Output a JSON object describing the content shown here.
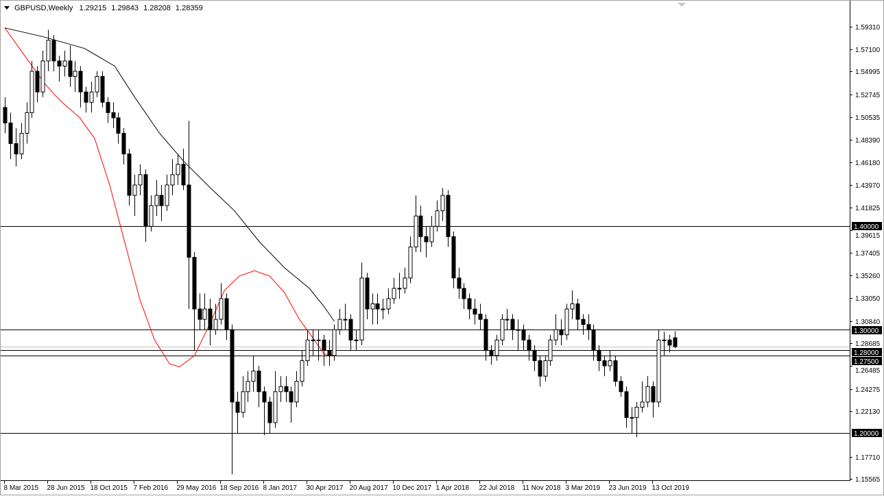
{
  "header": {
    "symbol": "GBPUSD,Weekly",
    "open": "1.29215",
    "high": "1.29843",
    "low": "1.28208",
    "close": "1.28359"
  },
  "colors": {
    "background": "#ffffff",
    "candle_up": "#ffffff",
    "candle_down": "#000000",
    "fast_ma": "#ff0000",
    "slow_ma": "#000000",
    "level_line": "#000000",
    "bid_line": "#c0c0c0"
  },
  "chart_data": {
    "type": "candlestick",
    "symbol": "GBPUSD",
    "timeframe": "Weekly",
    "ylim": [
      1.15565,
      1.5931
    ],
    "y_ticks": [
      "1.59310",
      "1.57100",
      "1.54995",
      "1.52745",
      "1.50535",
      "1.48390",
      "1.46180",
      "1.43970",
      "1.41825",
      "1.39615",
      "1.37405",
      "1.35260",
      "1.33050",
      "1.30840",
      "1.28685",
      "1.26485",
      "1.24275",
      "1.22130",
      "1.17710",
      "1.15565"
    ],
    "x_ticks": [
      "8 Mar 2015",
      "28 Jun 2015",
      "18 Oct 2015",
      "7 Feb 2016",
      "29 May 2016",
      "18 Sep 2016",
      "8 Jan 2017",
      "30 Apr 2017",
      "20 Aug 2017",
      "10 Dec 2017",
      "1 Apr 2018",
      "22 Jul 2018",
      "11 Nov 2018",
      "3 Mar 2019",
      "23 Jun 2019",
      "13 Oct 2019"
    ],
    "candle_interval_weeks": 2,
    "ohlc": [
      [
        1.515,
        1.525,
        1.49,
        1.5
      ],
      [
        1.5,
        1.51,
        1.465,
        1.48
      ],
      [
        1.48,
        1.495,
        1.458,
        1.47
      ],
      [
        1.47,
        1.5,
        1.465,
        1.49
      ],
      [
        1.49,
        1.52,
        1.48,
        1.51
      ],
      [
        1.51,
        1.56,
        1.505,
        1.55
      ],
      [
        1.55,
        1.555,
        1.52,
        1.53
      ],
      [
        1.53,
        1.57,
        1.525,
        1.56
      ],
      [
        1.56,
        1.59,
        1.55,
        1.58
      ],
      [
        1.58,
        1.585,
        1.55,
        1.56
      ],
      [
        1.56,
        1.565,
        1.54,
        1.555
      ],
      [
        1.555,
        1.57,
        1.545,
        1.56
      ],
      [
        1.56,
        1.575,
        1.535,
        1.545
      ],
      [
        1.545,
        1.56,
        1.53,
        1.55
      ],
      [
        1.55,
        1.555,
        1.515,
        1.53
      ],
      [
        1.53,
        1.535,
        1.51,
        1.52
      ],
      [
        1.52,
        1.54,
        1.51,
        1.53
      ],
      [
        1.53,
        1.55,
        1.525,
        1.545
      ],
      [
        1.545,
        1.55,
        1.515,
        1.52
      ],
      [
        1.52,
        1.525,
        1.5,
        1.51
      ],
      [
        1.51,
        1.52,
        1.495,
        1.505
      ],
      [
        1.505,
        1.51,
        1.48,
        1.49
      ],
      [
        1.49,
        1.495,
        1.46,
        1.47
      ],
      [
        1.47,
        1.475,
        1.42,
        1.43
      ],
      [
        1.43,
        1.45,
        1.41,
        1.44
      ],
      [
        1.44,
        1.46,
        1.43,
        1.45
      ],
      [
        1.45,
        1.455,
        1.385,
        1.4
      ],
      [
        1.4,
        1.43,
        1.395,
        1.42
      ],
      [
        1.42,
        1.445,
        1.41,
        1.43
      ],
      [
        1.43,
        1.44,
        1.405,
        1.42
      ],
      [
        1.42,
        1.45,
        1.415,
        1.44
      ],
      [
        1.44,
        1.465,
        1.43,
        1.45
      ],
      [
        1.45,
        1.47,
        1.44,
        1.46
      ],
      [
        1.46,
        1.475,
        1.435,
        1.44
      ],
      [
        1.44,
        1.502,
        1.32,
        1.37
      ],
      [
        1.37,
        1.375,
        1.28,
        1.32
      ],
      [
        1.32,
        1.335,
        1.3,
        1.31
      ],
      [
        1.31,
        1.335,
        1.3,
        1.32
      ],
      [
        1.32,
        1.33,
        1.285,
        1.3
      ],
      [
        1.3,
        1.325,
        1.295,
        1.31
      ],
      [
        1.31,
        1.345,
        1.305,
        1.33
      ],
      [
        1.33,
        1.335,
        1.29,
        1.3
      ],
      [
        1.3,
        1.305,
        1.16,
        1.23
      ],
      [
        1.23,
        1.24,
        1.2,
        1.22
      ],
      [
        1.22,
        1.255,
        1.215,
        1.24
      ],
      [
        1.24,
        1.26,
        1.23,
        1.25
      ],
      [
        1.25,
        1.275,
        1.24,
        1.26
      ],
      [
        1.26,
        1.265,
        1.225,
        1.24
      ],
      [
        1.24,
        1.245,
        1.198,
        1.23
      ],
      [
        1.23,
        1.235,
        1.2,
        1.21
      ],
      [
        1.21,
        1.26,
        1.205,
        1.24
      ],
      [
        1.24,
        1.255,
        1.23,
        1.245
      ],
      [
        1.245,
        1.255,
        1.23,
        1.24
      ],
      [
        1.24,
        1.245,
        1.21,
        1.23
      ],
      [
        1.23,
        1.26,
        1.225,
        1.25
      ],
      [
        1.25,
        1.28,
        1.245,
        1.27
      ],
      [
        1.27,
        1.3,
        1.265,
        1.29
      ],
      [
        1.29,
        1.3,
        1.275,
        1.29
      ],
      [
        1.29,
        1.3,
        1.27,
        1.29
      ],
      [
        1.29,
        1.295,
        1.265,
        1.28
      ],
      [
        1.28,
        1.29,
        1.265,
        1.275
      ],
      [
        1.275,
        1.305,
        1.27,
        1.3
      ],
      [
        1.3,
        1.32,
        1.295,
        1.31
      ],
      [
        1.31,
        1.325,
        1.3,
        1.31
      ],
      [
        1.31,
        1.315,
        1.28,
        1.29
      ],
      [
        1.29,
        1.3,
        1.28,
        1.29
      ],
      [
        1.29,
        1.365,
        1.285,
        1.35
      ],
      [
        1.35,
        1.355,
        1.31,
        1.32
      ],
      [
        1.32,
        1.335,
        1.305,
        1.325
      ],
      [
        1.325,
        1.335,
        1.305,
        1.32
      ],
      [
        1.32,
        1.33,
        1.31,
        1.32
      ],
      [
        1.32,
        1.34,
        1.315,
        1.33
      ],
      [
        1.33,
        1.35,
        1.325,
        1.34
      ],
      [
        1.34,
        1.355,
        1.33,
        1.34
      ],
      [
        1.34,
        1.36,
        1.335,
        1.35
      ],
      [
        1.35,
        1.39,
        1.345,
        1.38
      ],
      [
        1.38,
        1.43,
        1.375,
        1.41
      ],
      [
        1.41,
        1.42,
        1.375,
        1.39
      ],
      [
        1.39,
        1.4,
        1.37,
        1.385
      ],
      [
        1.385,
        1.41,
        1.38,
        1.4
      ],
      [
        1.4,
        1.425,
        1.395,
        1.415
      ],
      [
        1.415,
        1.437,
        1.405,
        1.43
      ],
      [
        1.43,
        1.435,
        1.38,
        1.39
      ],
      [
        1.39,
        1.395,
        1.34,
        1.35
      ],
      [
        1.35,
        1.36,
        1.33,
        1.34
      ],
      [
        1.34,
        1.345,
        1.32,
        1.33
      ],
      [
        1.33,
        1.335,
        1.31,
        1.32
      ],
      [
        1.32,
        1.33,
        1.305,
        1.315
      ],
      [
        1.315,
        1.325,
        1.3,
        1.31
      ],
      [
        1.31,
        1.315,
        1.27,
        1.28
      ],
      [
        1.28,
        1.285,
        1.266,
        1.275
      ],
      [
        1.275,
        1.295,
        1.27,
        1.29
      ],
      [
        1.29,
        1.315,
        1.285,
        1.31
      ],
      [
        1.31,
        1.32,
        1.3,
        1.31
      ],
      [
        1.31,
        1.315,
        1.29,
        1.3
      ],
      [
        1.3,
        1.31,
        1.28,
        1.3
      ],
      [
        1.3,
        1.305,
        1.28,
        1.29
      ],
      [
        1.29,
        1.295,
        1.27,
        1.28
      ],
      [
        1.28,
        1.285,
        1.26,
        1.27
      ],
      [
        1.27,
        1.275,
        1.245,
        1.255
      ],
      [
        1.255,
        1.275,
        1.25,
        1.27
      ],
      [
        1.27,
        1.295,
        1.265,
        1.29
      ],
      [
        1.29,
        1.315,
        1.285,
        1.3
      ],
      [
        1.3,
        1.31,
        1.285,
        1.295
      ],
      [
        1.295,
        1.325,
        1.29,
        1.32
      ],
      [
        1.32,
        1.338,
        1.31,
        1.325
      ],
      [
        1.325,
        1.33,
        1.3,
        1.31
      ],
      [
        1.31,
        1.315,
        1.295,
        1.305
      ],
      [
        1.305,
        1.315,
        1.29,
        1.3
      ],
      [
        1.3,
        1.305,
        1.27,
        1.28
      ],
      [
        1.28,
        1.285,
        1.26,
        1.27
      ],
      [
        1.27,
        1.275,
        1.255,
        1.265
      ],
      [
        1.265,
        1.28,
        1.26,
        1.27
      ],
      [
        1.27,
        1.275,
        1.245,
        1.25
      ],
      [
        1.25,
        1.255,
        1.235,
        1.24
      ],
      [
        1.24,
        1.245,
        1.205,
        1.215
      ],
      [
        1.215,
        1.225,
        1.2,
        1.215
      ],
      [
        1.215,
        1.23,
        1.196,
        1.225
      ],
      [
        1.225,
        1.25,
        1.22,
        1.23
      ],
      [
        1.23,
        1.255,
        1.225,
        1.245
      ],
      [
        1.245,
        1.25,
        1.215,
        1.23
      ],
      [
        1.23,
        1.3,
        1.225,
        1.29
      ],
      [
        1.29,
        1.298,
        1.275,
        1.29
      ],
      [
        1.29,
        1.295,
        1.278,
        1.285
      ],
      [
        1.29215,
        1.29843,
        1.28208,
        1.28359
      ]
    ],
    "moving_averages": [
      {
        "color": "#ff0000",
        "values": [
          [
            0,
            1.592
          ],
          [
            8,
            1.565
          ],
          [
            16,
            1.538
          ],
          [
            22,
            1.522
          ],
          [
            30,
            1.505
          ],
          [
            36,
            1.485
          ],
          [
            42,
            1.44
          ],
          [
            48,
            1.385
          ],
          [
            54,
            1.33
          ],
          [
            60,
            1.29
          ],
          [
            66,
            1.267
          ],
          [
            70,
            1.264
          ],
          [
            76,
            1.275
          ],
          [
            82,
            1.305
          ],
          [
            88,
            1.338
          ],
          [
            94,
            1.352
          ],
          [
            100,
            1.357
          ],
          [
            106,
            1.352
          ],
          [
            112,
            1.336
          ],
          [
            118,
            1.31
          ],
          [
            124,
            1.29
          ],
          [
            128,
            1.276
          ],
          [
            130,
            1.275
          ],
          [
            132,
            1.277
          ]
        ]
      },
      {
        "color": "#000000",
        "values": [
          [
            0,
            1.592
          ],
          [
            16,
            1.583
          ],
          [
            32,
            1.572
          ],
          [
            44,
            1.555
          ],
          [
            52,
            1.525
          ],
          [
            62,
            1.49
          ],
          [
            72,
            1.462
          ],
          [
            82,
            1.438
          ],
          [
            92,
            1.415
          ],
          [
            102,
            1.385
          ],
          [
            112,
            1.36
          ],
          [
            122,
            1.34
          ],
          [
            128,
            1.322
          ],
          [
            132,
            1.308
          ]
        ]
      }
    ],
    "levels": [
      {
        "price": 1.4,
        "label": "1.40000"
      },
      {
        "price": 1.3,
        "label": "1.30000"
      },
      {
        "price": 1.28,
        "label": "1.28000"
      },
      {
        "price": 1.275,
        "label": "1.27500"
      },
      {
        "price": 1.2,
        "label": "1.20000"
      }
    ],
    "bid_price": 1.28359
  }
}
